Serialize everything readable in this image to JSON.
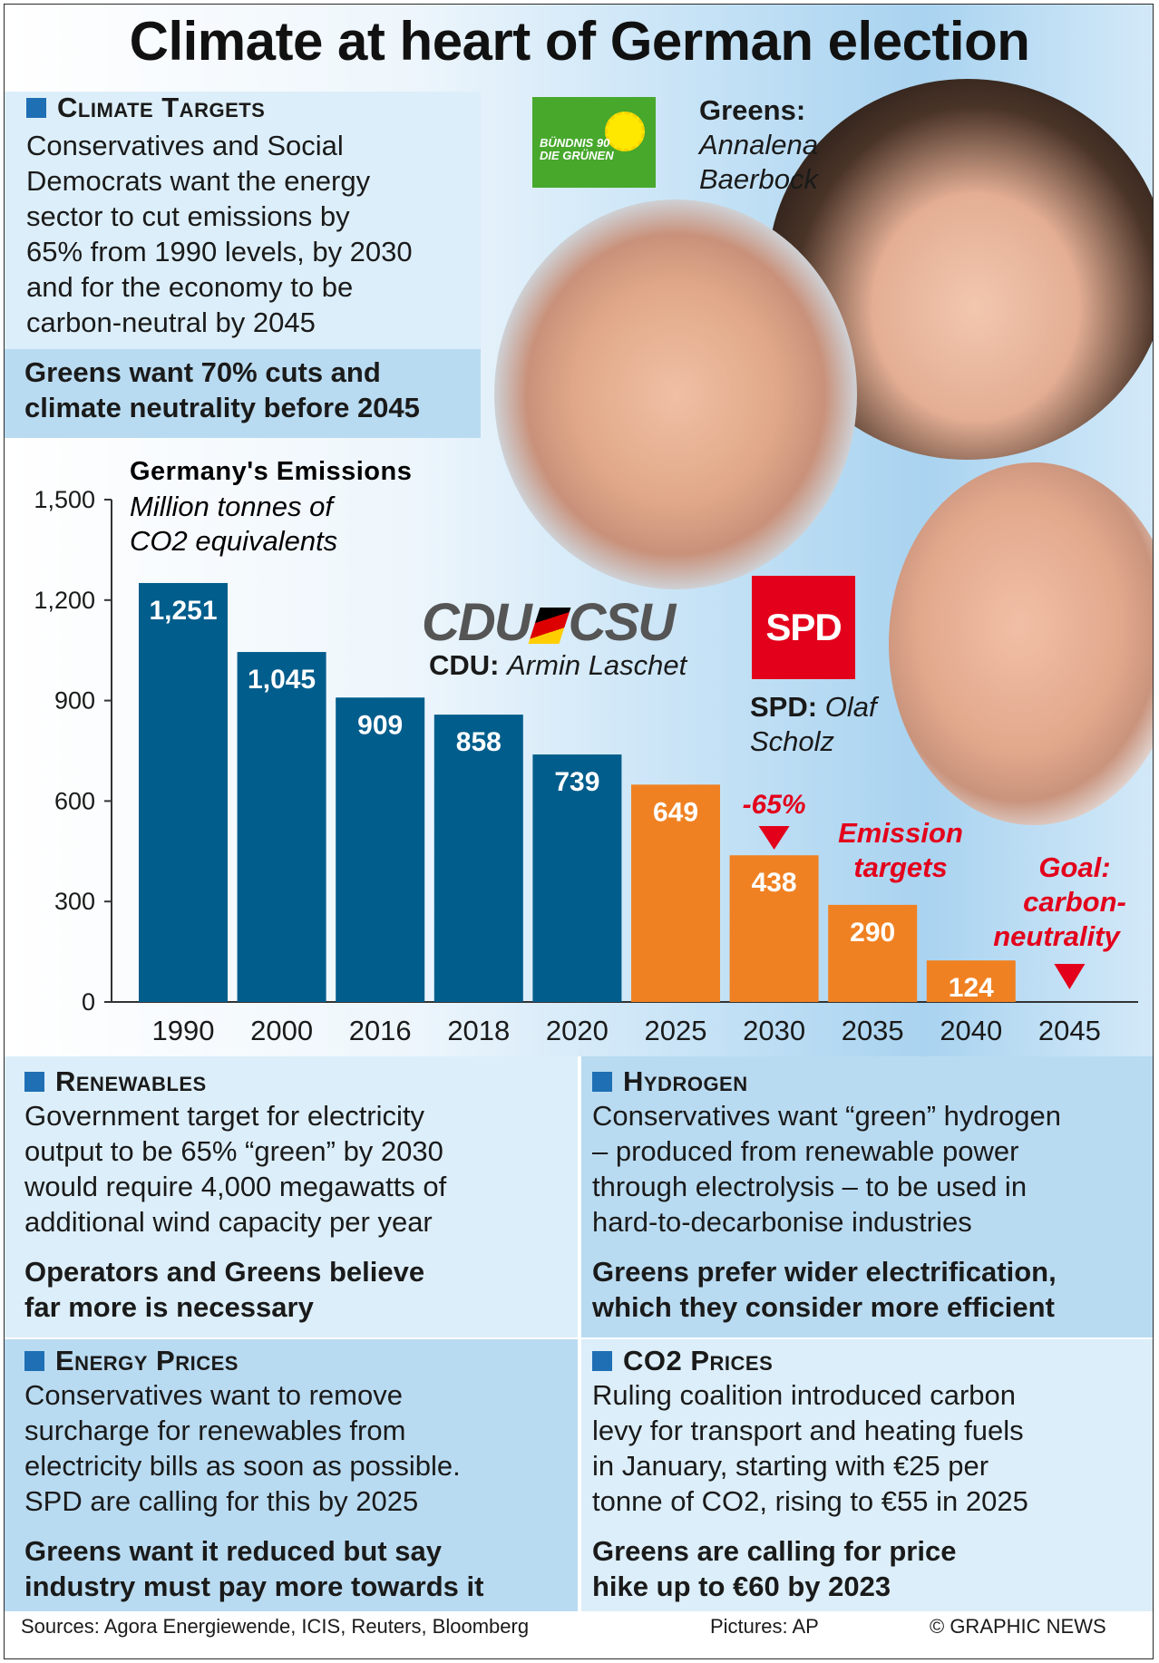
{
  "title": "Climate at heart of German election",
  "climate_targets": {
    "heading": "Climate Targets",
    "lines": [
      "Conservatives and Social",
      "Democrats want the energy",
      "sector to cut emissions by",
      "65% from 1990 levels, by 2030",
      "and for the economy to be",
      "carbon-neutral by 2045"
    ],
    "highlight": [
      "Greens want 70% cuts and",
      "climate neutrality before 2045"
    ]
  },
  "candidates": {
    "greens_label": "Greens:",
    "greens_name_line1": "Annalena",
    "greens_name_line2": "Baerbock",
    "greens_logo_line1": "BÜNDNIS 90",
    "greens_logo_line2": "DIE GRÜNEN",
    "cdu_logo": "CDU",
    "csu_logo": "CSU",
    "cdu_label": "CDU:",
    "cdu_name": "Armin Laschet",
    "spd_logo": "SPD",
    "spd_label": "SPD:",
    "spd_name_line1": "Olaf",
    "spd_name_line2": "Scholz"
  },
  "colors": {
    "historical": "#005d8c",
    "target": "#f08122",
    "annotation": "#e3001b",
    "accent_square": "#1f6fb4"
  },
  "chart_data": {
    "type": "bar",
    "title": "Germany's Emissions",
    "subtitle_line1": "Million tonnes of",
    "subtitle_line2": "CO2 equivalents",
    "categories": [
      "1990",
      "2000",
      "2016",
      "2018",
      "2020",
      "2025",
      "2030",
      "2035",
      "2040",
      "2045"
    ],
    "values": [
      1251,
      1045,
      909,
      858,
      739,
      649,
      438,
      290,
      124,
      0
    ],
    "value_labels": [
      "1,251",
      "1,045",
      "909",
      "858",
      "739",
      "649",
      "438",
      "290",
      "124",
      ""
    ],
    "kind": [
      "historical",
      "historical",
      "historical",
      "historical",
      "historical",
      "target",
      "target",
      "target",
      "target",
      "target"
    ],
    "ylim": [
      0,
      1500
    ],
    "yticks": [
      0,
      300,
      600,
      900,
      1200,
      1500
    ],
    "ytick_labels": [
      "0",
      "300",
      "600",
      "900",
      "1,200",
      "1,500"
    ],
    "annotations": {
      "minus65": "-65%",
      "emission_targets_line1": "Emission",
      "emission_targets_line2": "targets",
      "goal_line1": "Goal:",
      "goal_line2": "carbon-",
      "goal_line3": "neutrality"
    },
    "grid": false
  },
  "renewables": {
    "heading": "Renewables",
    "lines": [
      "Government target for electricity",
      "output to be 65% “green” by 2030",
      "would require 4,000 megawatts of",
      "additional wind capacity per year"
    ],
    "highlight": [
      "Operators and Greens believe",
      "far more is necessary"
    ]
  },
  "hydrogen": {
    "heading": "Hydrogen",
    "lines": [
      "Conservatives want “green” hydrogen",
      "– produced from renewable power",
      "through electrolysis – to be used in",
      "hard-to-decarbonise industries"
    ],
    "highlight": [
      "Greens prefer wider electrification,",
      "which they consider more efficient"
    ]
  },
  "energy_prices": {
    "heading": "Energy Prices",
    "lines": [
      "Conservatives want to remove",
      "surcharge for renewables from",
      "electricity bills as soon as possible.",
      "SPD are calling for this by 2025"
    ],
    "highlight": [
      "Greens want it reduced but say",
      "industry must pay more towards it"
    ]
  },
  "co2_prices": {
    "heading": "CO2 Prices",
    "lines": [
      "Ruling coalition introduced carbon",
      "levy for transport and heating fuels",
      "in January, starting with €25 per",
      "tonne of CO2, rising to €55 in 2025"
    ],
    "highlight": [
      "Greens are calling for price",
      "hike up to €60 by 2023"
    ]
  },
  "footer": {
    "sources": "Sources: Agora Energiewende, ICIS, Reuters, Bloomberg",
    "pictures": "Pictures: AP",
    "credit": "© GRAPHIC NEWS"
  }
}
